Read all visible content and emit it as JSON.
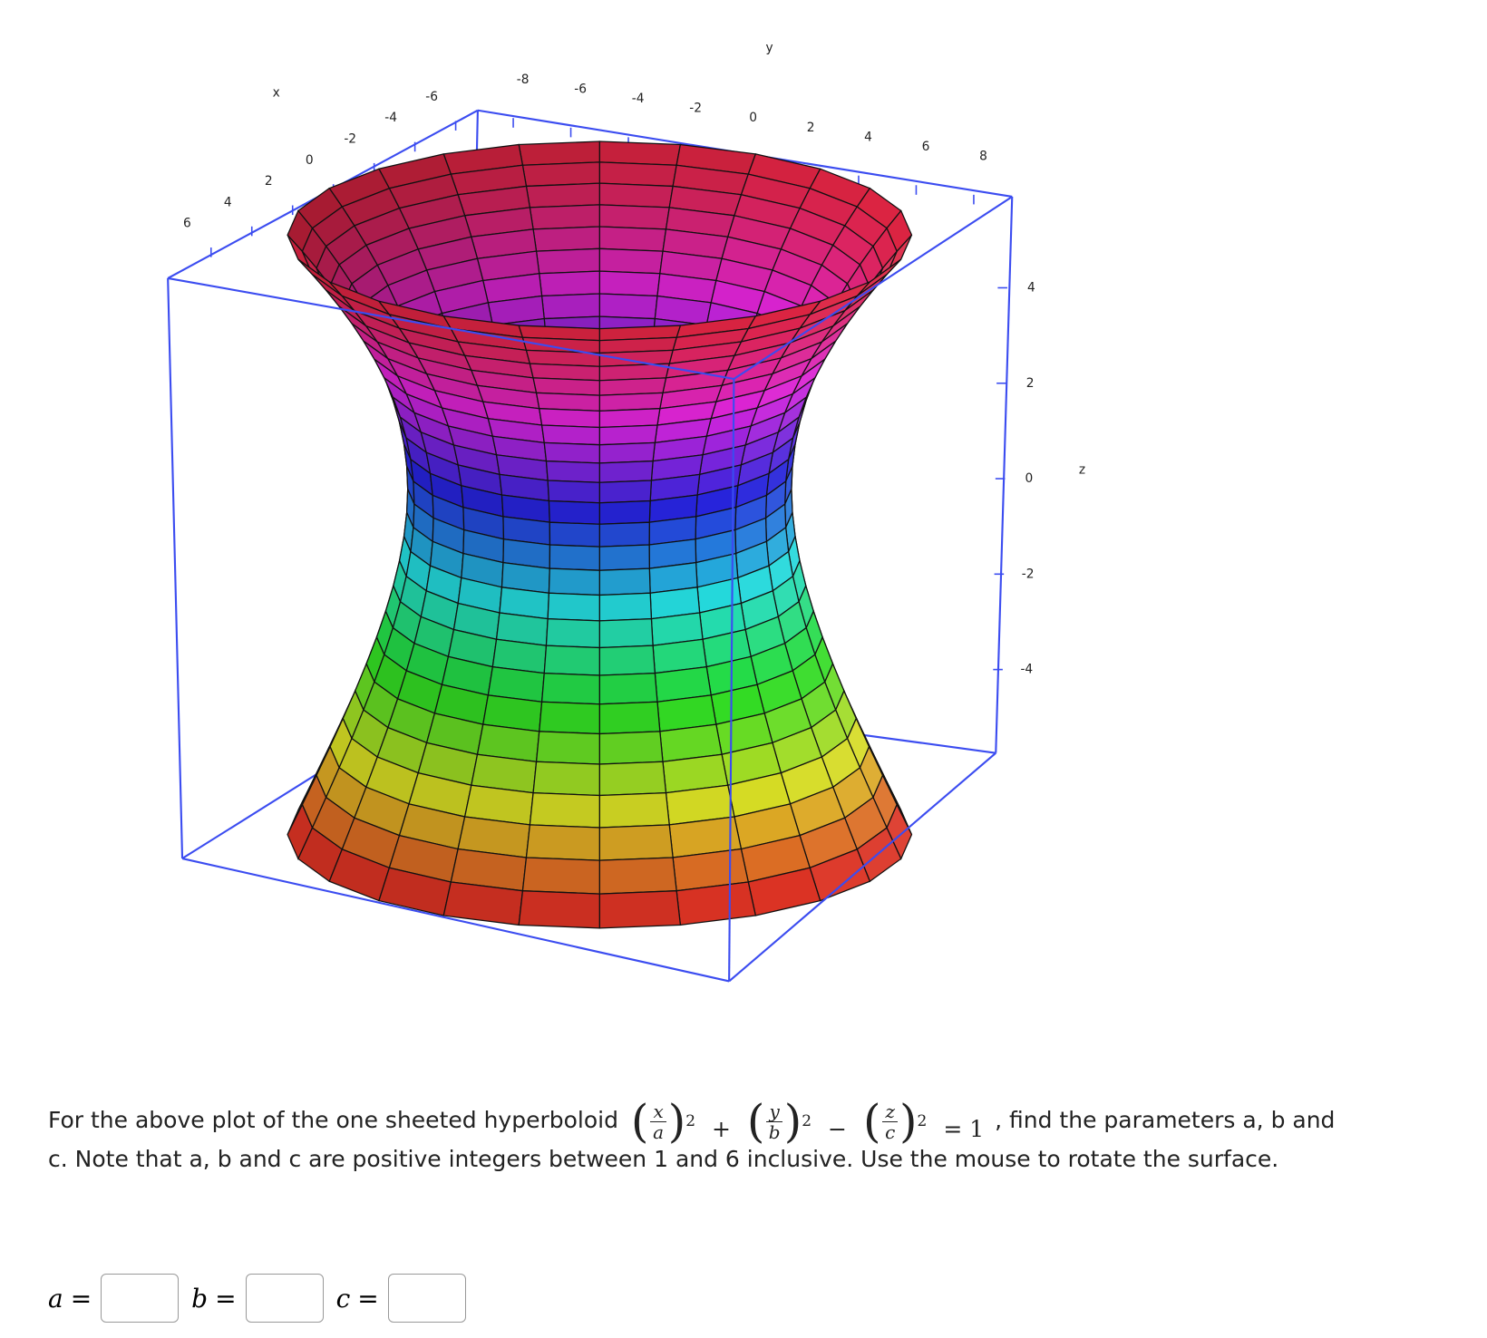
{
  "plot": {
    "x_label": "x",
    "y_label": "y",
    "z_label": "z",
    "x_ticks": [
      6,
      4,
      2,
      0,
      -2,
      -4,
      -6
    ],
    "y_ticks": [
      -8,
      -6,
      -4,
      -2,
      0,
      2,
      4,
      6,
      8
    ],
    "z_ticks": [
      4,
      2,
      0,
      -2,
      -4
    ]
  },
  "question": {
    "intro": "For the above plot of the one sheeted hyperboloid",
    "formula": {
      "x": "x",
      "a": "a",
      "y": "y",
      "b": "b",
      "z": "z",
      "c": "c",
      "power": "2",
      "plus": "+",
      "minus": "−",
      "equals": "= 1"
    },
    "outro": ", find the parameters a, b and c. Note that a, b and c are positive integers between 1 and 6 inclusive. Use the mouse to rotate the surface."
  },
  "answers": [
    {
      "variable": "a",
      "sign": "="
    },
    {
      "variable": "b",
      "sign": "="
    },
    {
      "variable": "c",
      "sign": "="
    }
  ]
}
